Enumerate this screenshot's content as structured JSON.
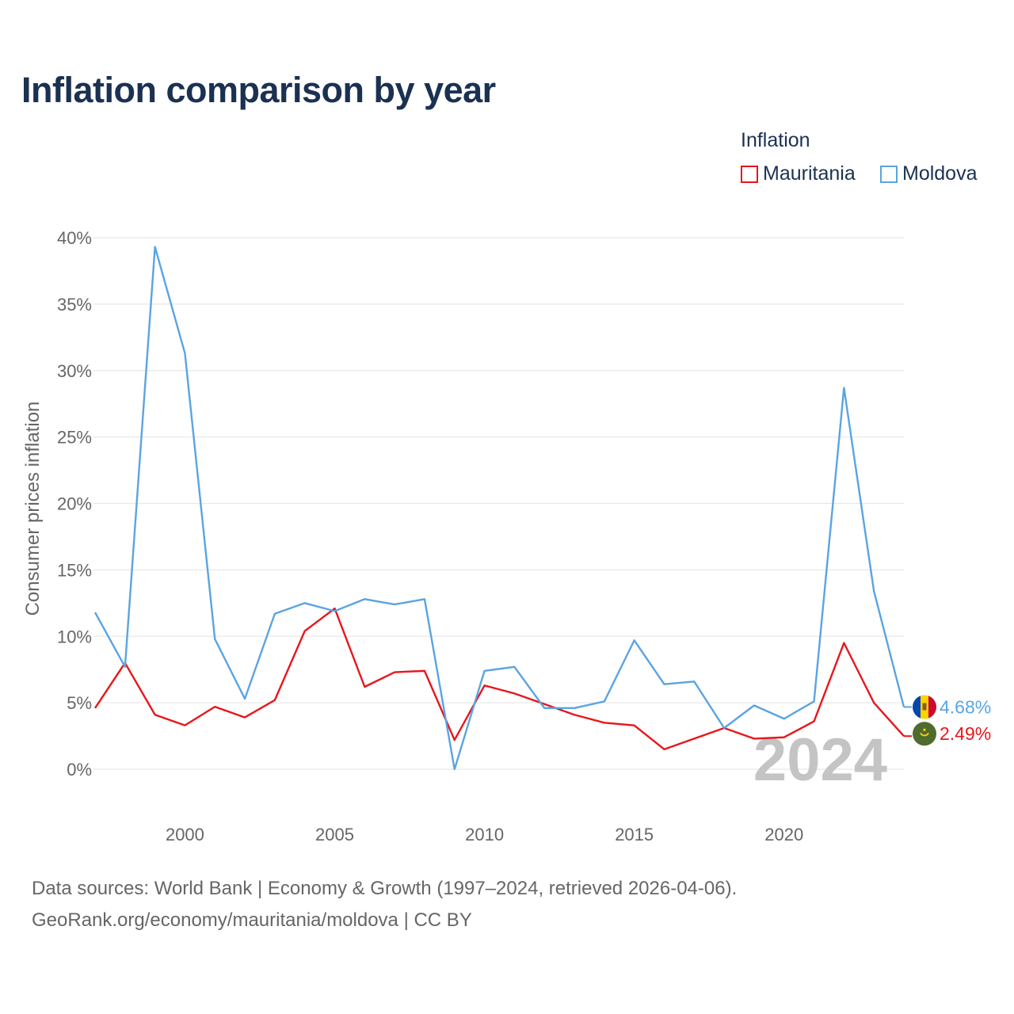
{
  "title": "Inflation comparison by year",
  "legend": {
    "title": "Inflation",
    "items": [
      {
        "label": "Mauritania",
        "color": "#e8161b"
      },
      {
        "label": "Moldova",
        "color": "#5aa4e2"
      }
    ]
  },
  "year_label": "2024",
  "footer": {
    "line1": "Data sources: World Bank | Economy & Growth (1997–2024, retrieved 2026-04-06).",
    "line2": "GeoRank.org/economy/mauritania/moldova | CC BY"
  },
  "chart_data": {
    "type": "line",
    "title": "Inflation comparison by year",
    "xlabel": "",
    "ylabel": "Consumer prices inflation",
    "x": [
      1997,
      1998,
      1999,
      2000,
      2001,
      2002,
      2003,
      2004,
      2005,
      2006,
      2007,
      2008,
      2009,
      2010,
      2011,
      2012,
      2013,
      2014,
      2015,
      2016,
      2017,
      2018,
      2019,
      2020,
      2021,
      2022,
      2023,
      2024
    ],
    "xlim": [
      1997,
      2024
    ],
    "ylim": [
      0,
      40
    ],
    "xticks": [
      2000,
      2005,
      2010,
      2015,
      2020
    ],
    "yticks": [
      0,
      5,
      10,
      15,
      20,
      25,
      30,
      35,
      40
    ],
    "ytick_labels": [
      "0%",
      "5%",
      "10%",
      "15%",
      "20%",
      "25%",
      "30%",
      "35%",
      "40%"
    ],
    "grid": true,
    "legend_position": "top-right",
    "series": [
      {
        "name": "Mauritania",
        "color": "#e8161b",
        "values": [
          4.6,
          8.0,
          4.1,
          3.3,
          4.7,
          3.9,
          5.2,
          10.4,
          12.1,
          6.2,
          7.3,
          7.4,
          2.2,
          6.3,
          5.7,
          4.9,
          4.1,
          3.5,
          3.3,
          1.5,
          2.3,
          3.1,
          2.3,
          2.4,
          3.6,
          9.5,
          5.0,
          2.49
        ],
        "end_label": "2.49%"
      },
      {
        "name": "Moldova",
        "color": "#5aa4e2",
        "values": [
          11.8,
          7.7,
          39.3,
          31.3,
          9.8,
          5.3,
          11.7,
          12.5,
          11.9,
          12.8,
          12.4,
          12.8,
          0.0,
          7.4,
          7.7,
          4.6,
          4.6,
          5.1,
          9.7,
          6.4,
          6.6,
          3.1,
          4.8,
          3.8,
          5.1,
          28.7,
          13.4,
          4.68
        ],
        "end_label": "4.68%"
      }
    ]
  }
}
